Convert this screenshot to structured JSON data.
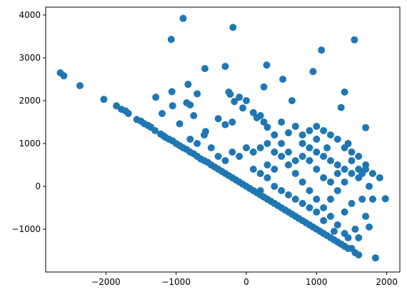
{
  "chart_data": {
    "type": "scatter",
    "color": "#1f77b4",
    "x": [
      -2650,
      -2600,
      -2370,
      -2030,
      -1850,
      -1780,
      -1720,
      -1680,
      -1560,
      -1500,
      -1450,
      -1400,
      -1360,
      -1300,
      -1220,
      -1180,
      -1150,
      -1100,
      -1050,
      -1000,
      -950,
      -900,
      -850,
      -800,
      -750,
      -700,
      -650,
      -600,
      -550,
      -500,
      -450,
      -400,
      -350,
      -300,
      -250,
      -200,
      -150,
      -100,
      -50,
      0,
      50,
      100,
      150,
      200,
      250,
      300,
      350,
      400,
      450,
      500,
      550,
      600,
      650,
      700,
      750,
      800,
      850,
      900,
      950,
      1000,
      1050,
      1100,
      1150,
      1200,
      1250,
      1300,
      1350,
      1400,
      1450,
      1500,
      1550,
      1600,
      1840,
      -900,
      -1070,
      -190,
      1070,
      1540,
      -300,
      290,
      -590,
      950,
      520,
      -1060,
      -830,
      -700,
      -1290,
      1400,
      1350,
      1980,
      1700,
      250,
      -250,
      -230,
      0,
      -100,
      -170,
      -400,
      -800,
      -850,
      -1050,
      -950,
      -1200,
      -750,
      -580,
      -300,
      -200,
      -50,
      100,
      150,
      200,
      250,
      300,
      400,
      500,
      600,
      700,
      650,
      800,
      900,
      1000,
      1100,
      1200,
      1300,
      1400,
      1500,
      1600,
      1650,
      1700,
      1800,
      1900,
      1750,
      1800,
      1700,
      1750,
      1600,
      1400,
      1300,
      1200,
      1100,
      1000,
      900,
      800,
      700,
      600,
      500,
      400,
      300,
      200,
      100,
      0,
      -100,
      -200,
      -300,
      -400,
      -500,
      -600,
      -700,
      -800,
      100,
      200,
      300,
      400,
      500,
      600,
      700,
      800,
      900,
      1000,
      1100,
      1200,
      1300,
      1400,
      1500,
      1300,
      1200,
      1100,
      1000,
      900,
      800,
      700,
      600,
      500,
      400,
      300,
      200,
      1400,
      1500,
      1600,
      1500,
      1400,
      1300,
      1200,
      1100,
      1000,
      900,
      800,
      1250,
      1450,
      1550,
      1650,
      1000,
      1150,
      1450,
      1600,
      1700
    ],
    "y": [
      2650,
      2580,
      2350,
      2030,
      1880,
      1800,
      1760,
      1700,
      1560,
      1520,
      1460,
      1420,
      1380,
      1300,
      1220,
      1180,
      1140,
      1100,
      1060,
      1000,
      950,
      900,
      860,
      800,
      760,
      700,
      640,
      600,
      560,
      500,
      450,
      400,
      350,
      300,
      250,
      200,
      150,
      100,
      50,
      0,
      -50,
      -100,
      -150,
      -200,
      -250,
      -300,
      -350,
      -400,
      -450,
      -500,
      -550,
      -600,
      -650,
      -700,
      -750,
      -800,
      -850,
      -900,
      -950,
      -1000,
      -1050,
      -1100,
      -1150,
      -1200,
      -1250,
      -1300,
      -1350,
      -1400,
      -1450,
      -1450,
      -1550,
      -1600,
      -1670,
      3920,
      3430,
      3710,
      3180,
      3420,
      2800,
      2830,
      2750,
      2680,
      2500,
      2210,
      2380,
      2160,
      2080,
      2200,
      1840,
      -290,
      1370,
      2320,
      2200,
      2150,
      2000,
      2080,
      1980,
      1580,
      1900,
      1950,
      1880,
      1460,
      1700,
      1650,
      1280,
      1440,
      1500,
      1830,
      1720,
      1600,
      1650,
      1500,
      1380,
      1200,
      1500,
      1250,
      1400,
      2000,
      1200,
      1300,
      1100,
      1300,
      1200,
      1100,
      900,
      800,
      700,
      300,
      500,
      300,
      200,
      0,
      -300,
      -700,
      -950,
      -1200,
      -1100,
      -900,
      -700,
      -500,
      -300,
      -100,
      100,
      300,
      500,
      700,
      800,
      1000,
      900,
      800,
      900,
      700,
      800,
      600,
      700,
      900,
      1200,
      1000,
      1100,
      400,
      300,
      200,
      0,
      -100,
      -200,
      -300,
      -400,
      -500,
      -600,
      -800,
      -300,
      -100,
      100,
      300,
      500,
      600,
      700,
      800,
      900,
      700,
      600,
      800,
      1000,
      400,
      500,
      -100,
      -600,
      -400,
      200,
      600,
      400,
      300,
      100,
      200,
      400,
      600,
      1000,
      -1050,
      -1200,
      -1000,
      -300,
      1400,
      900,
      1000,
      400,
      400
    ],
    "xlim": [
      -2858,
      2187
    ],
    "ylim": [
      -2000,
      4183
    ],
    "xticks": [
      {
        "value": -2000,
        "label": "−2000"
      },
      {
        "value": -1000,
        "label": "−1000"
      },
      0,
      1000,
      2000
    ],
    "yticks": [
      {
        "value": -1000,
        "label": "−1000"
      },
      0,
      1000,
      2000,
      3000,
      4000
    ]
  }
}
